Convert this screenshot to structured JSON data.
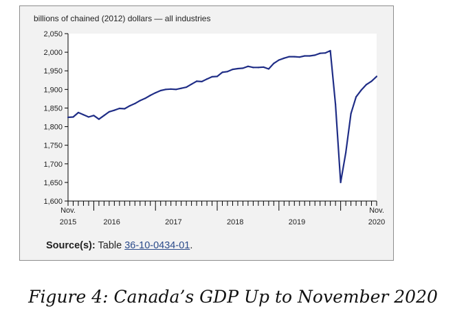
{
  "chart_data": {
    "type": "line",
    "title": "",
    "ylabel": "billions of chained (2012) dollars — all industries",
    "xlabel": "",
    "ylim": [
      1600,
      2050
    ],
    "yticks": [
      "1,600",
      "1,650",
      "1,700",
      "1,750",
      "1,800",
      "1,850",
      "1,900",
      "1,950",
      "2,000",
      "2,050"
    ],
    "ytick_values": [
      1600,
      1650,
      1700,
      1750,
      1800,
      1850,
      1900,
      1950,
      2000,
      2050
    ],
    "xticks": [
      {
        "label": "Nov.\n2015",
        "index": 0
      },
      {
        "label": "2016",
        "index": 5
      },
      {
        "label": "2017",
        "index": 17
      },
      {
        "label": "2018",
        "index": 29
      },
      {
        "label": "2019",
        "index": 41
      },
      {
        "label": "Nov.\n2020",
        "index": 60
      }
    ],
    "grid": false,
    "line_color": "#1f2d86",
    "series": [
      {
        "values": [
          1825,
          1826,
          1838,
          1832,
          1826,
          1830,
          1820,
          1830,
          1840,
          1844,
          1849,
          1848,
          1856,
          1862,
          1870,
          1876,
          1884,
          1891,
          1897,
          1900,
          1901,
          1900,
          1903,
          1906,
          1914,
          1922,
          1921,
          1928,
          1934,
          1935,
          1946,
          1948,
          1954,
          1956,
          1957,
          1962,
          1959,
          1959,
          1960,
          1955,
          1970,
          1979,
          1984,
          1988,
          1988,
          1987,
          1990,
          1990,
          1992,
          1997,
          1998,
          2004,
          1860,
          1650,
          1730,
          1835,
          1880,
          1898,
          1913,
          1922,
          1935
        ]
      }
    ]
  },
  "source": {
    "label": "Source(s):",
    "prefix": "Table",
    "link_text": "36-10-0434-01",
    "suffix": "."
  },
  "caption": "Figure 4: Canada’s GDP Up to November 2020"
}
